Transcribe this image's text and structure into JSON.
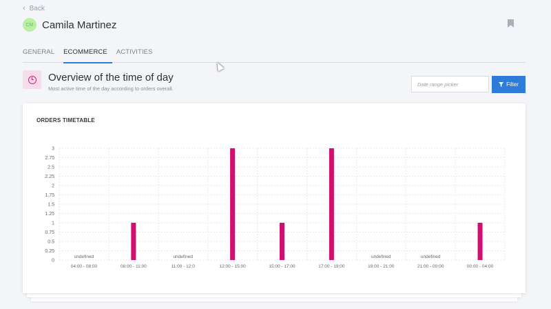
{
  "nav": {
    "back_label": "Back"
  },
  "user": {
    "name": "Camila Martinez",
    "avatar_initials": "CM",
    "avatar_color": "#b8f0a6"
  },
  "tabs": [
    {
      "label": "GENERAL",
      "active": false
    },
    {
      "label": "ECOMMERCE",
      "active": true
    },
    {
      "label": "ACTIVITIES",
      "active": false
    }
  ],
  "section": {
    "icon": "clock-icon",
    "title": "Overview of the time of day",
    "subtitle": "Most active time of the day according to orders overall."
  },
  "filters": {
    "date_placeholder": "Date range picker",
    "filter_label": "Filter",
    "accent_color": "#2f7bd9"
  },
  "card": {
    "title": "ORDERS TIMETABLE"
  },
  "chart_data": {
    "type": "bar",
    "categories": [
      "04:00 - 08:00",
      "08:00 - 11:00",
      "11:00 - 12:0",
      "12:00 - 15:00",
      "15:00 - 17:00",
      "17:00 - 19:00",
      "19:00 - 21:00",
      "21:00 - 00:00",
      "00:00 - 04:00"
    ],
    "values": [
      null,
      1,
      null,
      3,
      1,
      3,
      null,
      null,
      1
    ],
    "missing_label": "undefined",
    "ylim": [
      0,
      3
    ],
    "yticks": [
      "0",
      "0.25",
      "0.5",
      "0.75",
      "1",
      "1.25",
      "1.5",
      "1.75",
      "2",
      "2.25",
      "2.5",
      "2.75",
      "3"
    ],
    "bar_color": "#d10f6f",
    "grid": true,
    "title": "",
    "xlabel": "",
    "ylabel": ""
  }
}
